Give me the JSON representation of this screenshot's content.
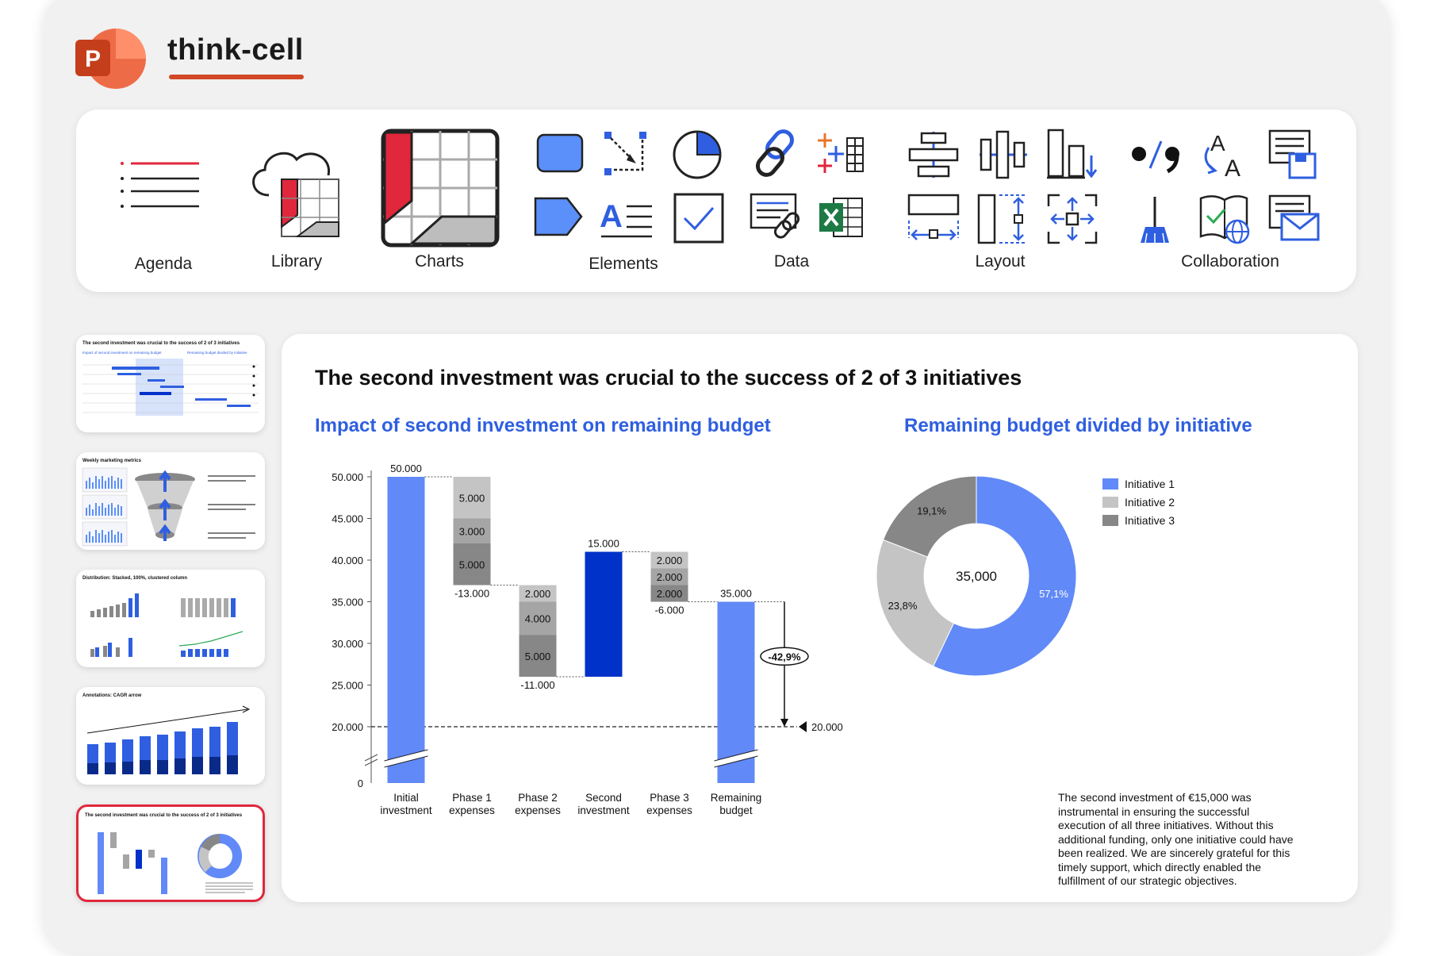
{
  "app": {
    "brand": "think-cell",
    "logo_letter": "P"
  },
  "ribbon": {
    "groups": [
      {
        "label": "Agenda"
      },
      {
        "label": "Library"
      },
      {
        "label": "Charts"
      },
      {
        "label": "Elements"
      },
      {
        "label": "Data"
      },
      {
        "label": "Layout"
      },
      {
        "label": "Collaboration"
      }
    ],
    "elements_text_icon": "A"
  },
  "thumbnails": [
    {
      "title": "The second investment was crucial to the success of 2 of 3 initiatives",
      "active": false
    },
    {
      "title": "Weekly marketing metrics",
      "active": false
    },
    {
      "title": "Distribution: Stacked, 100%, clustered column",
      "active": false
    },
    {
      "title": "Annotations: CAGR arrow",
      "active": false
    },
    {
      "title": "The second investment was crucial to the success of 2 of 3 initiatives",
      "active": true
    }
  ],
  "slide": {
    "title": "The second investment was crucial to the success of 2 of 3 initiatives",
    "left_subtitle": "Impact of second investment on remaining budget",
    "right_subtitle": "Remaining budget divided by initiative",
    "paragraph": "The second investment of €15,000 was instrumental in ensuring the successful execution of all three initiatives. Without this additional funding, only one initiative could have been realized. We are sincerely grateful for this timely support, which directly enabled the fulfillment of our strategic objectives."
  },
  "colors": {
    "blue_light": "#6189f7",
    "blue_dark": "#0031c8",
    "grey_1": "#c4c4c4",
    "grey_2": "#a5a5a5",
    "grey_3": "#878787",
    "accent_red": "#e0273c",
    "subtitle_blue": "#2f5fe0"
  },
  "chart_data": [
    {
      "type": "waterfall",
      "categories": [
        "Initial\ninvestment",
        "Phase 1\nexpenses",
        "Phase 2\nexpenses",
        "Second\ninvestment",
        "Phase 3\nexpenses",
        "Remaining\nbudget"
      ],
      "yticks": [
        "0",
        "20.000",
        "25.000",
        "30.000",
        "35.000",
        "40.000",
        "45.000",
        "50.000"
      ],
      "ylim": [
        0,
        50000
      ],
      "axis_break": true,
      "bars": [
        {
          "category": "Initial investment",
          "kind": "total",
          "start": 0,
          "end": 50000,
          "label": "50.000"
        },
        {
          "category": "Phase 1 expenses",
          "kind": "delta",
          "start": 50000,
          "end": 37000,
          "total_label": "-13.000",
          "segments": [
            {
              "value": 5000,
              "label": "5.000",
              "shade": "grey_1"
            },
            {
              "value": 3000,
              "label": "3.000",
              "shade": "grey_2"
            },
            {
              "value": 5000,
              "label": "5.000",
              "shade": "grey_3"
            }
          ]
        },
        {
          "category": "Phase 2 expenses",
          "kind": "delta",
          "start": 37000,
          "end": 26000,
          "total_label": "-11.000",
          "segments": [
            {
              "value": 2000,
              "label": "2.000",
              "shade": "grey_1"
            },
            {
              "value": 4000,
              "label": "4.000",
              "shade": "grey_2"
            },
            {
              "value": 5000,
              "label": "5.000",
              "shade": "grey_3"
            }
          ]
        },
        {
          "category": "Second investment",
          "kind": "delta_up",
          "start": 26000,
          "end": 41000,
          "label": "15.000"
        },
        {
          "category": "Phase 3 expenses",
          "kind": "delta",
          "start": 41000,
          "end": 35000,
          "total_label": "-6.000",
          "segments": [
            {
              "value": 2000,
              "label": "2.000",
              "shade": "grey_1"
            },
            {
              "value": 2000,
              "label": "2.000",
              "shade": "grey_2"
            },
            {
              "value": 2000,
              "label": "2.000",
              "shade": "grey_3"
            }
          ]
        },
        {
          "category": "Remaining budget",
          "kind": "total",
          "start": 0,
          "end": 35000,
          "label": "35.000"
        }
      ],
      "reference_line": {
        "value": 20000,
        "label": "20.000"
      },
      "difference_arrow": {
        "from": 35000,
        "to": 20000,
        "label": "-42,9%"
      }
    },
    {
      "type": "pie",
      "donut": true,
      "center_label": "35,000",
      "slices": [
        {
          "name": "Initiative 1",
          "percent": 57.1,
          "label": "57,1%",
          "color": "#6189f7"
        },
        {
          "name": "Initiative 2",
          "percent": 23.8,
          "label": "23,8%",
          "color": "#c4c4c4"
        },
        {
          "name": "Initiative 3",
          "percent": 19.1,
          "label": "19,1%",
          "color": "#878787"
        }
      ],
      "legend": {
        "placement": "top-right",
        "entries": [
          "Initiative 1",
          "Initiative 2",
          "Initiative 3"
        ]
      }
    }
  ]
}
